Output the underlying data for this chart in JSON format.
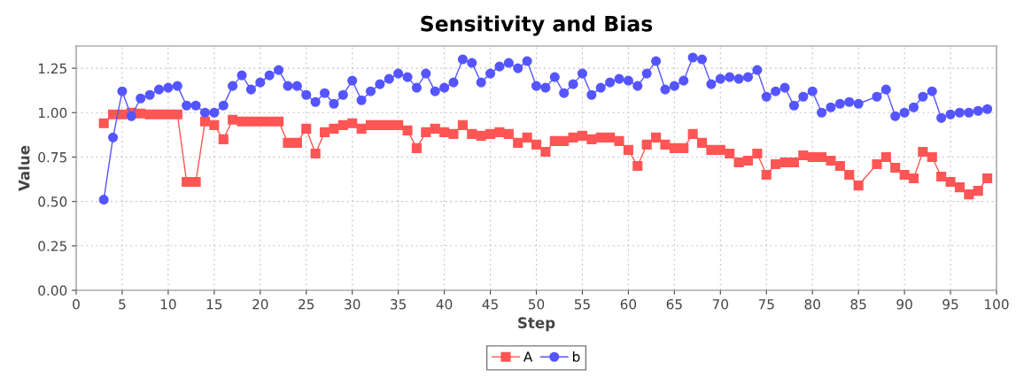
{
  "chart_data": {
    "type": "line",
    "title": "Sensitivity and Bias",
    "xlabel": "Step",
    "ylabel": "Value",
    "xlim": [
      0,
      100
    ],
    "xticks": [
      0,
      5,
      10,
      15,
      20,
      25,
      30,
      35,
      40,
      45,
      50,
      55,
      60,
      65,
      70,
      75,
      80,
      85,
      90,
      95,
      100
    ],
    "ylim": [
      0,
      1.375
    ],
    "yticks": [
      {
        "value": 0,
        "label": "0.00"
      },
      {
        "value": 0.25,
        "label": "0.25"
      },
      {
        "value": 0.5,
        "label": "0.50"
      },
      {
        "value": 0.75,
        "label": "0.75"
      },
      {
        "value": 1.0,
        "label": "1.00"
      },
      {
        "value": 1.25,
        "label": "1.25"
      }
    ],
    "grid": true,
    "legend": "bottom",
    "line_style": "solid",
    "x": [
      3,
      4,
      5,
      6,
      7,
      8,
      9,
      10,
      11,
      12,
      13,
      14,
      15,
      16,
      17,
      18,
      19,
      20,
      21,
      22,
      23,
      24,
      25,
      26,
      27,
      28,
      29,
      30,
      31,
      32,
      33,
      34,
      35,
      36,
      37,
      38,
      39,
      40,
      41,
      42,
      43,
      44,
      45,
      46,
      47,
      48,
      49,
      50,
      51,
      52,
      53,
      54,
      55,
      56,
      57,
      58,
      59,
      60,
      61,
      62,
      63,
      64,
      65,
      66,
      67,
      68,
      69,
      70,
      71,
      72,
      73,
      74,
      75,
      76,
      77,
      78,
      79,
      80,
      81,
      82,
      83,
      84,
      85,
      87,
      88,
      89,
      90,
      91,
      92,
      93,
      94,
      95,
      96,
      97,
      98,
      99
    ],
    "series": [
      {
        "name": "A",
        "color": "#ff5555",
        "marker": "square",
        "values": [
          0.94,
          0.99,
          0.99,
          1.0,
          0.995,
          0.99,
          0.99,
          0.99,
          0.99,
          0.61,
          0.61,
          0.95,
          0.93,
          0.85,
          0.96,
          0.95,
          0.95,
          0.95,
          0.95,
          0.95,
          0.83,
          0.83,
          0.91,
          0.77,
          0.89,
          0.91,
          0.93,
          0.94,
          0.91,
          0.93,
          0.93,
          0.93,
          0.93,
          0.9,
          0.8,
          0.89,
          0.91,
          0.89,
          0.88,
          0.93,
          0.88,
          0.87,
          0.88,
          0.89,
          0.88,
          0.83,
          0.86,
          0.82,
          0.78,
          0.84,
          0.84,
          0.86,
          0.87,
          0.85,
          0.86,
          0.86,
          0.84,
          0.79,
          0.7,
          0.82,
          0.86,
          0.82,
          0.8,
          0.8,
          0.88,
          0.83,
          0.79,
          0.79,
          0.77,
          0.72,
          0.73,
          0.77,
          0.65,
          0.71,
          0.72,
          0.72,
          0.76,
          0.75,
          0.75,
          0.73,
          0.7,
          0.65,
          0.59,
          0.71,
          0.75,
          0.69,
          0.65,
          0.63,
          0.78,
          0.75,
          0.64,
          0.61,
          0.58,
          0.54,
          0.56,
          0.63
        ]
      },
      {
        "name": "b",
        "color": "#5555ff",
        "marker": "circle",
        "values": [
          0.51,
          0.86,
          1.12,
          0.98,
          1.08,
          1.1,
          1.13,
          1.14,
          1.15,
          1.04,
          1.04,
          1.0,
          1.0,
          1.04,
          1.15,
          1.21,
          1.13,
          1.17,
          1.21,
          1.24,
          1.15,
          1.15,
          1.1,
          1.06,
          1.11,
          1.05,
          1.1,
          1.18,
          1.07,
          1.12,
          1.16,
          1.19,
          1.22,
          1.2,
          1.14,
          1.22,
          1.12,
          1.14,
          1.17,
          1.3,
          1.28,
          1.17,
          1.22,
          1.26,
          1.28,
          1.25,
          1.29,
          1.15,
          1.14,
          1.2,
          1.11,
          1.16,
          1.22,
          1.1,
          1.14,
          1.17,
          1.19,
          1.18,
          1.15,
          1.22,
          1.29,
          1.13,
          1.15,
          1.18,
          1.31,
          1.3,
          1.16,
          1.19,
          1.2,
          1.19,
          1.2,
          1.24,
          1.09,
          1.12,
          1.14,
          1.04,
          1.09,
          1.12,
          1.0,
          1.03,
          1.05,
          1.06,
          1.05,
          1.09,
          1.13,
          0.98,
          1.0,
          1.03,
          1.09,
          1.12,
          0.97,
          0.99,
          1.0,
          1.0,
          1.01,
          1.02
        ]
      }
    ]
  }
}
